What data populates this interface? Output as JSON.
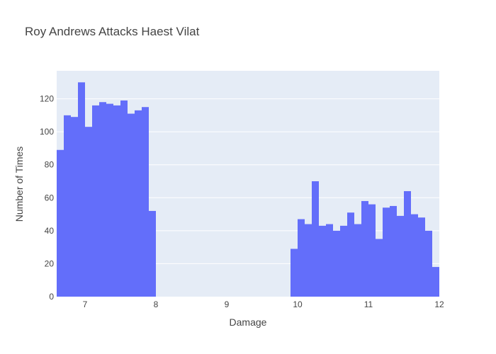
{
  "chart_data": {
    "type": "bar",
    "title": "Roy Andrews Attacks Haest Vilat",
    "xlabel": "Damage",
    "ylabel": "Number of Times",
    "xlim": [
      6.6,
      12.0
    ],
    "ylim": [
      0,
      137
    ],
    "grid": true,
    "legend": "none",
    "bar_color": "#636efa",
    "plot_bg": "#e5ecf6",
    "x_ticks": [
      7,
      8,
      9,
      10,
      11,
      12
    ],
    "y_ticks": [
      0,
      20,
      40,
      60,
      80,
      100,
      120
    ],
    "bin_width": 0.1,
    "bins": [
      {
        "x0": 6.6,
        "count": 89
      },
      {
        "x0": 6.7,
        "count": 110
      },
      {
        "x0": 6.8,
        "count": 109
      },
      {
        "x0": 6.9,
        "count": 130
      },
      {
        "x0": 7.0,
        "count": 103
      },
      {
        "x0": 7.1,
        "count": 116
      },
      {
        "x0": 7.2,
        "count": 118
      },
      {
        "x0": 7.3,
        "count": 117
      },
      {
        "x0": 7.4,
        "count": 116
      },
      {
        "x0": 7.5,
        "count": 119
      },
      {
        "x0": 7.6,
        "count": 111
      },
      {
        "x0": 7.7,
        "count": 113
      },
      {
        "x0": 7.8,
        "count": 115
      },
      {
        "x0": 7.9,
        "count": 52
      },
      {
        "x0": 9.9,
        "count": 29
      },
      {
        "x0": 10.0,
        "count": 47
      },
      {
        "x0": 10.1,
        "count": 44
      },
      {
        "x0": 10.2,
        "count": 70
      },
      {
        "x0": 10.3,
        "count": 43
      },
      {
        "x0": 10.4,
        "count": 44
      },
      {
        "x0": 10.5,
        "count": 40
      },
      {
        "x0": 10.6,
        "count": 43
      },
      {
        "x0": 10.7,
        "count": 51
      },
      {
        "x0": 10.8,
        "count": 44
      },
      {
        "x0": 10.9,
        "count": 58
      },
      {
        "x0": 11.0,
        "count": 56
      },
      {
        "x0": 11.1,
        "count": 35
      },
      {
        "x0": 11.2,
        "count": 54
      },
      {
        "x0": 11.3,
        "count": 55
      },
      {
        "x0": 11.4,
        "count": 49
      },
      {
        "x0": 11.5,
        "count": 64
      },
      {
        "x0": 11.6,
        "count": 50
      },
      {
        "x0": 11.7,
        "count": 48
      },
      {
        "x0": 11.8,
        "count": 40
      },
      {
        "x0": 11.9,
        "count": 18
      }
    ]
  }
}
